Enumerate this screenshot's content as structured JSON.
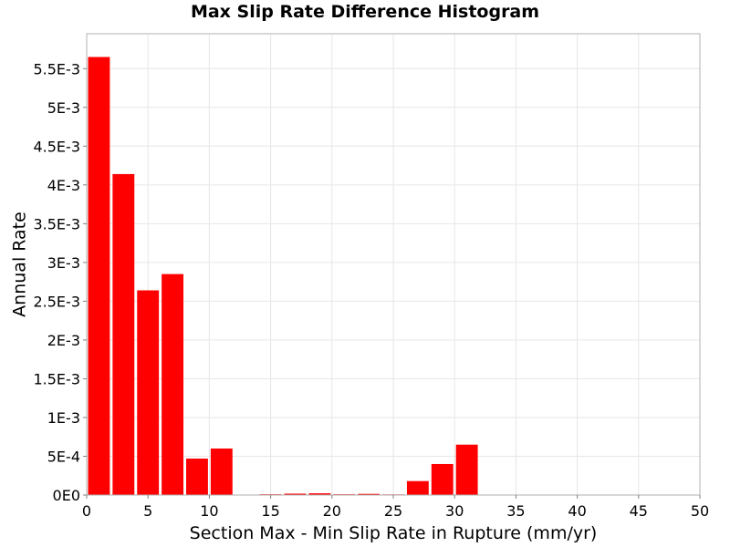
{
  "chart_data": {
    "type": "bar",
    "title": "Max Slip Rate Difference Histogram",
    "xlabel": "Section Max - Min Slip Rate in Rupture (mm/yr)",
    "ylabel": "Annual Rate",
    "xlim": [
      0,
      50
    ],
    "ylim": [
      0,
      0.00595
    ],
    "bin_width": 2,
    "x": [
      1,
      3,
      5,
      7,
      9,
      11,
      13,
      15,
      17,
      19,
      21,
      23,
      25,
      27,
      29,
      31
    ],
    "values": [
      0.00565,
      0.00414,
      0.00264,
      0.00285,
      0.00047,
      0.0006,
      5e-06,
      1e-05,
      1.8e-05,
      2.2e-05,
      1e-05,
      1.5e-05,
      8e-06,
      0.00018,
      0.0004,
      0.00065
    ],
    "x_ticks": [
      0,
      5,
      10,
      15,
      20,
      25,
      30,
      35,
      40,
      45,
      50
    ],
    "x_tick_labels": [
      "0",
      "5",
      "10",
      "15",
      "20",
      "25",
      "30",
      "35",
      "40",
      "45",
      "50"
    ],
    "y_ticks": [
      0,
      0.0005,
      0.001,
      0.0015,
      0.002,
      0.0025,
      0.003,
      0.0035,
      0.004,
      0.0045,
      0.005,
      0.0055
    ],
    "y_tick_labels": [
      "0E0",
      "5E-4",
      "1E-3",
      "1.5E-3",
      "2E-3",
      "2.5E-3",
      "3E-3",
      "3.5E-3",
      "4E-3",
      "4.5E-3",
      "5E-3",
      "5.5E-3"
    ],
    "grid": true,
    "colors": {
      "bar": "#ff0000",
      "grid": "#e6e6e6",
      "frame": "#b0b0b0"
    }
  }
}
